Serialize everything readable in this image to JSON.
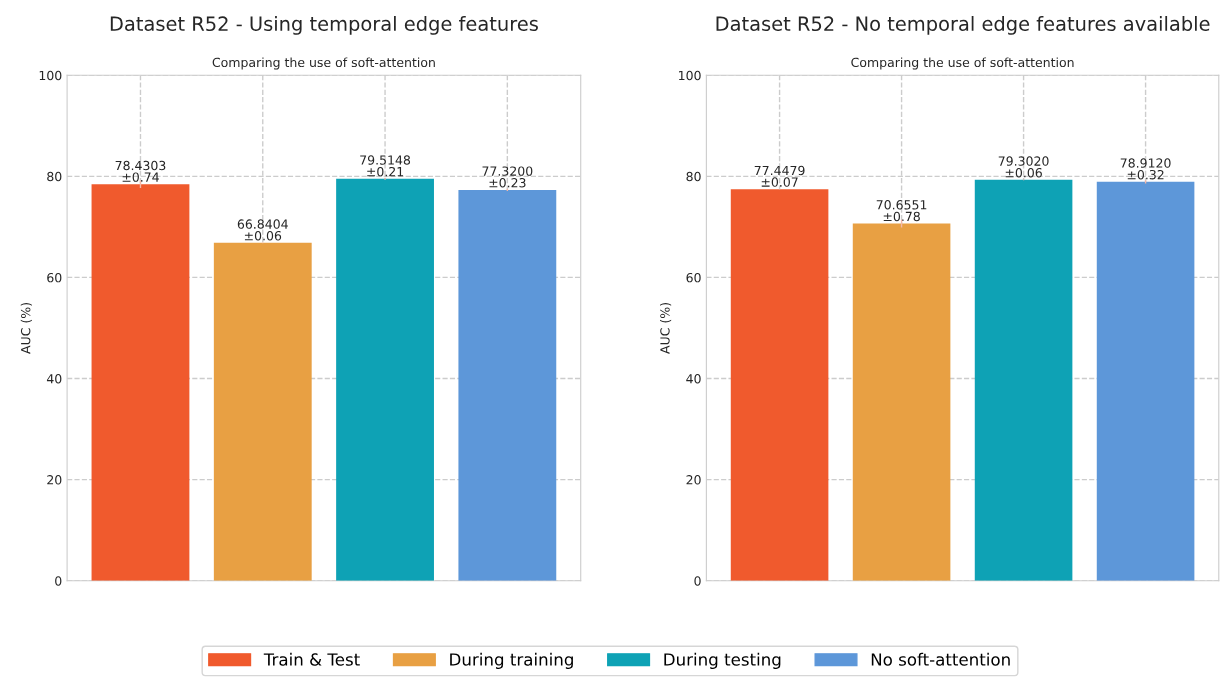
{
  "chart_data": [
    {
      "type": "bar",
      "title": "Dataset R52 - Using temporal edge features",
      "subtitle": "Comparing the use of soft-attention",
      "ylabel": "AUC (%)",
      "categories": [
        null,
        null,
        null,
        null
      ],
      "series": [
        {
          "name": "Train & Test",
          "color": "#f05a2d",
          "values": [
            78.4303,
            null,
            null,
            null
          ],
          "errors": [
            0.74,
            null,
            null,
            null
          ],
          "value_labels": [
            "78.4303\n±0.74",
            null,
            null,
            null
          ]
        },
        {
          "name": "During training",
          "color": "#e8a043",
          "values": [
            null,
            66.8404,
            null,
            null
          ],
          "errors": [
            null,
            0.06,
            null,
            null
          ],
          "value_labels": [
            null,
            "66.8404\n±0.06",
            null,
            null
          ]
        },
        {
          "name": "During testing",
          "color": "#0ea2b5",
          "values": [
            null,
            null,
            79.5148,
            null
          ],
          "errors": [
            null,
            null,
            0.21,
            null
          ],
          "value_labels": [
            null,
            null,
            "79.5148\n±0.21",
            null
          ]
        },
        {
          "name": "No soft-attention",
          "color": "#5d97d9",
          "values": [
            null,
            null,
            null,
            77.32
          ],
          "errors": [
            null,
            null,
            null,
            0.23
          ],
          "value_labels": [
            null,
            null,
            null,
            "77.3200\n±0.23"
          ]
        }
      ],
      "ylim": [
        0,
        100
      ],
      "yticks": [
        0,
        20,
        40,
        60,
        80,
        100
      ],
      "grid": true,
      "legend": "bottom"
    },
    {
      "type": "bar",
      "title": "Dataset R52 - No temporal edge features available",
      "subtitle": "Comparing the use of soft-attention",
      "ylabel": "AUC (%)",
      "categories": [
        null,
        null,
        null,
        null
      ],
      "series": [
        {
          "name": "Train & Test",
          "color": "#f05a2d",
          "values": [
            77.4479,
            null,
            null,
            null
          ],
          "errors": [
            0.07,
            null,
            null,
            null
          ],
          "value_labels": [
            "77.4479\n±0.07",
            null,
            null,
            null
          ]
        },
        {
          "name": "During training",
          "color": "#e8a043",
          "values": [
            null,
            70.6551,
            null,
            null
          ],
          "errors": [
            null,
            0.78,
            null,
            null
          ],
          "value_labels": [
            null,
            "70.6551\n±0.78",
            null,
            null
          ]
        },
        {
          "name": "During testing",
          "color": "#0ea2b5",
          "values": [
            null,
            null,
            79.302,
            null
          ],
          "errors": [
            null,
            null,
            0.06,
            null
          ],
          "value_labels": [
            null,
            null,
            "79.3020\n±0.06",
            null
          ]
        },
        {
          "name": "No soft-attention",
          "color": "#5d97d9",
          "values": [
            null,
            null,
            null,
            78.912
          ],
          "errors": [
            null,
            null,
            null,
            0.32
          ],
          "value_labels": [
            null,
            null,
            null,
            "78.9120\n±0.32"
          ]
        }
      ],
      "ylim": [
        0,
        100
      ],
      "yticks": [
        0,
        20,
        40,
        60,
        80,
        100
      ],
      "grid": true
    }
  ]
}
